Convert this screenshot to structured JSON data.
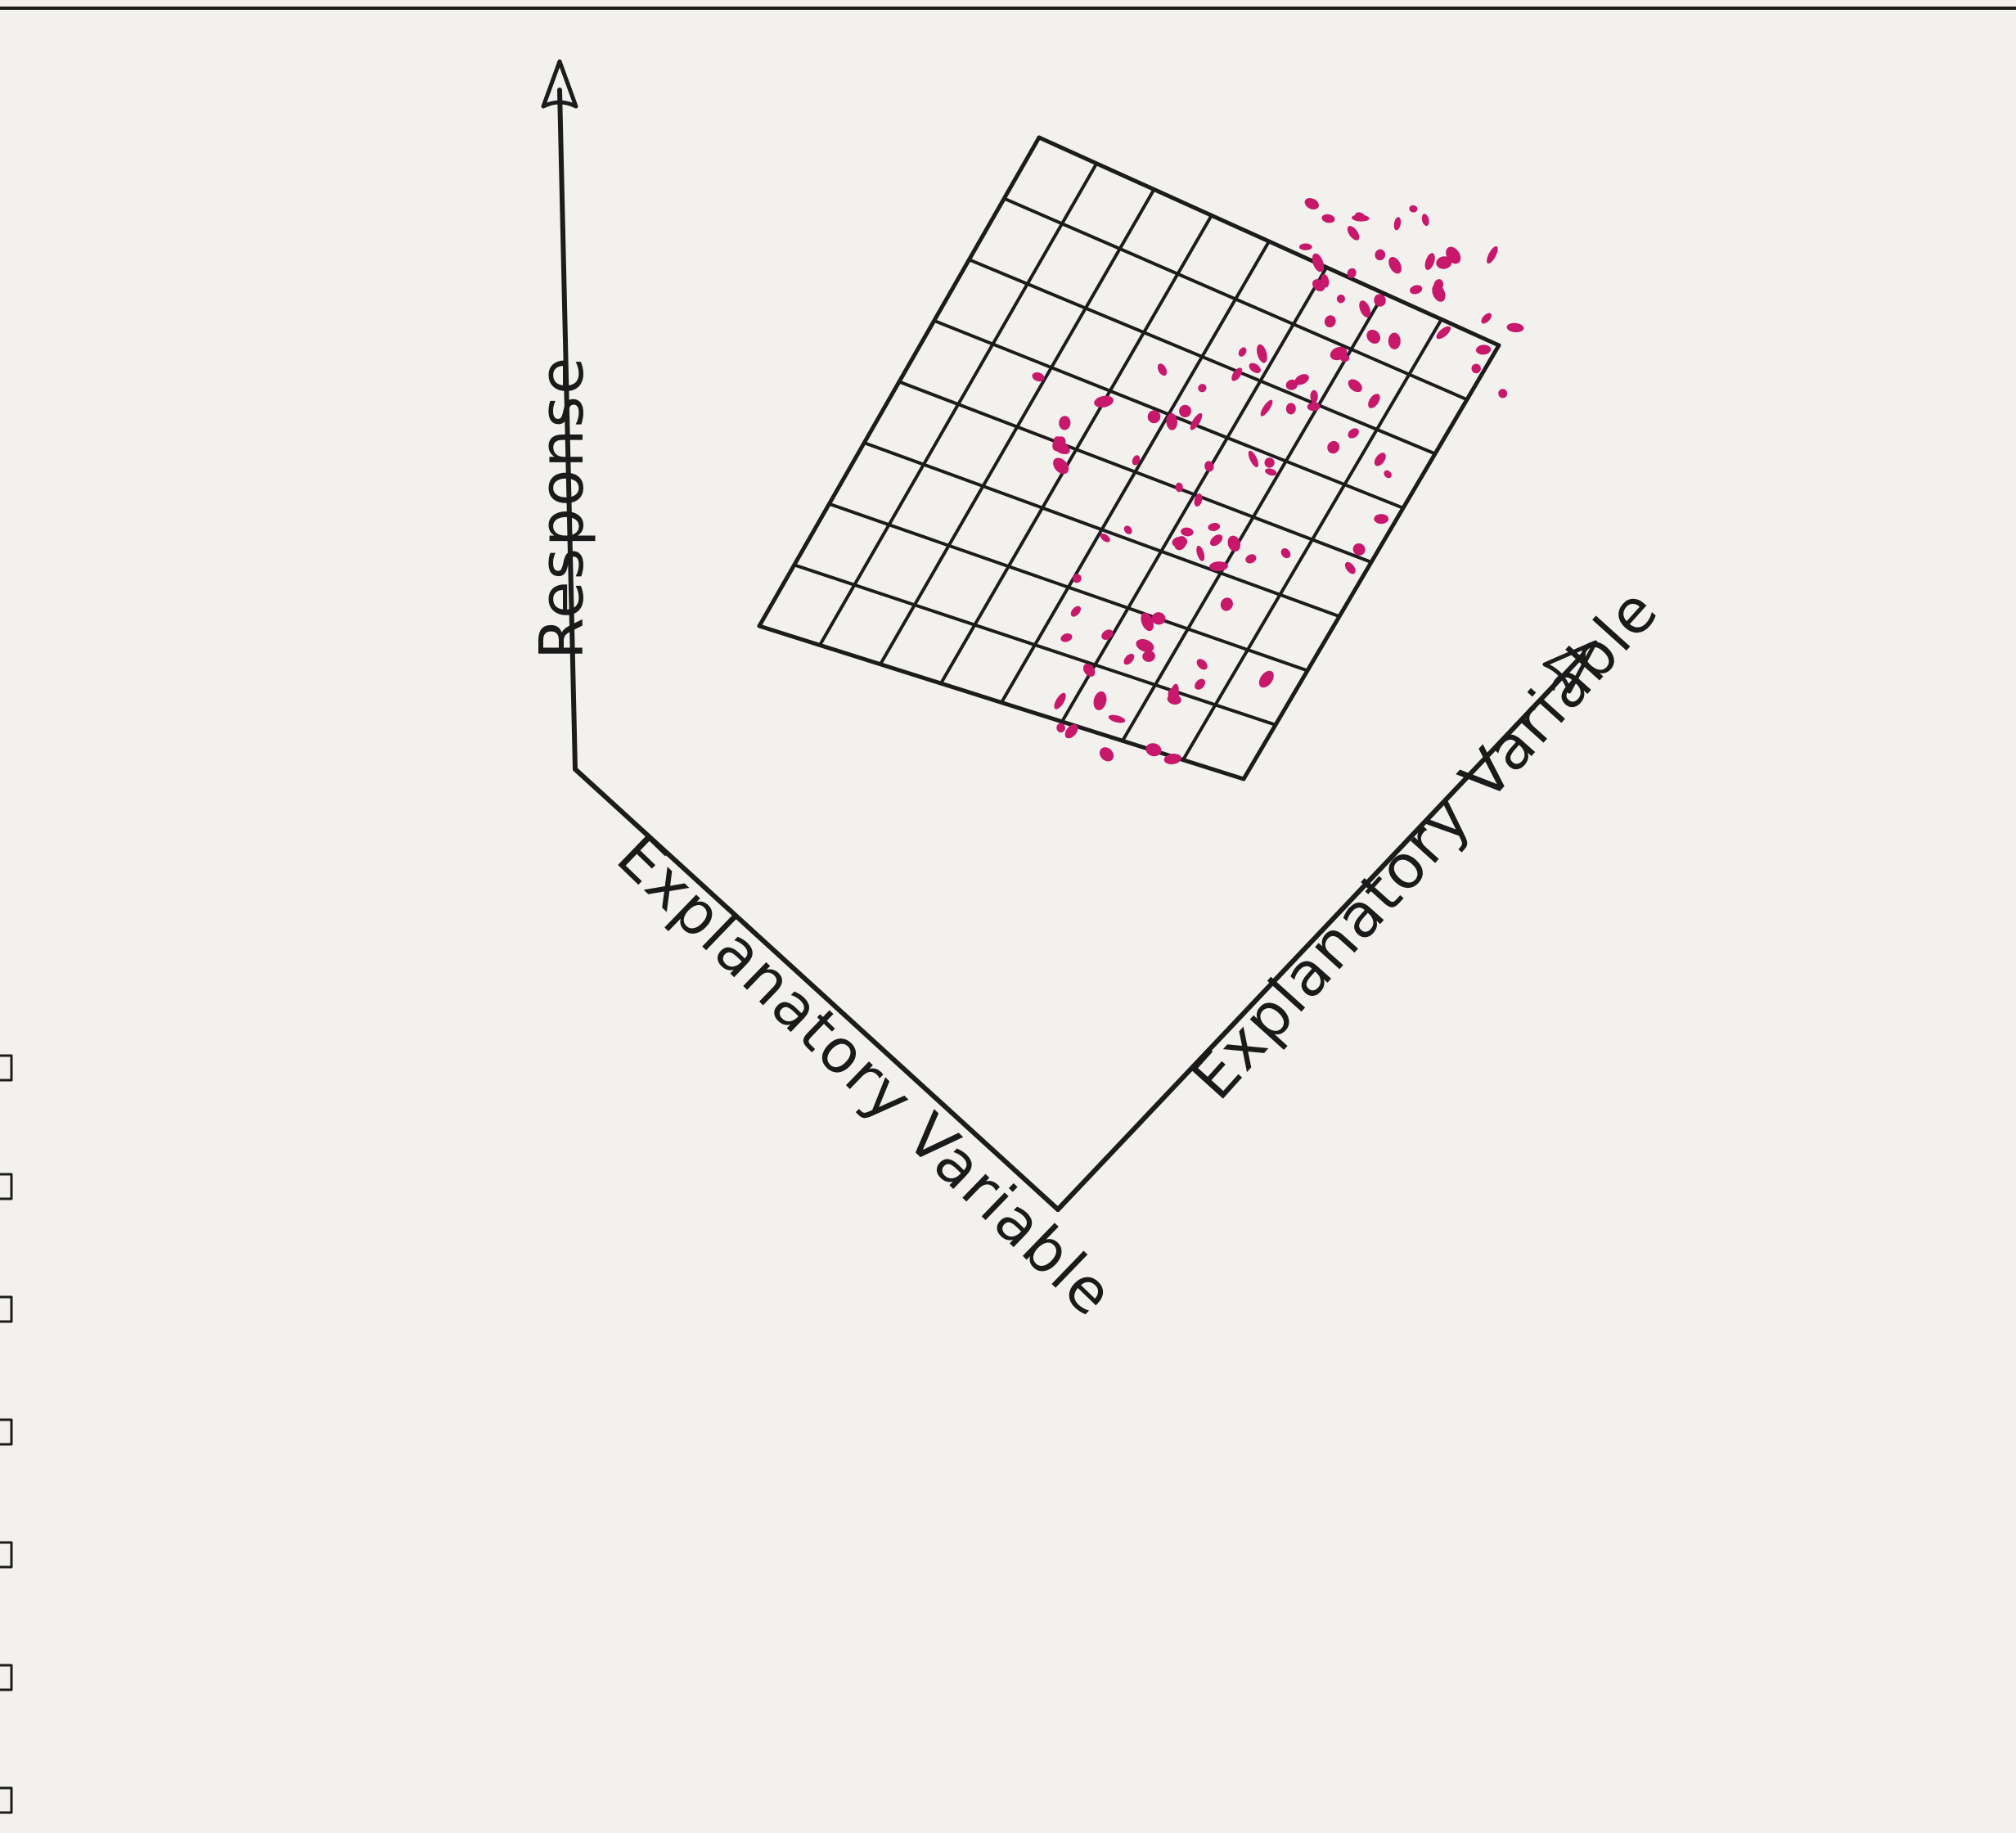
{
  "axes": {
    "vertical_label": "Response",
    "left_horizontal_label": "Explanatory Variable",
    "right_horizontal_label": "Explanatory Variable"
  },
  "colors": {
    "paper": "#f3f1ee",
    "ink": "#1c1c1c",
    "points": "#c8186c"
  }
}
